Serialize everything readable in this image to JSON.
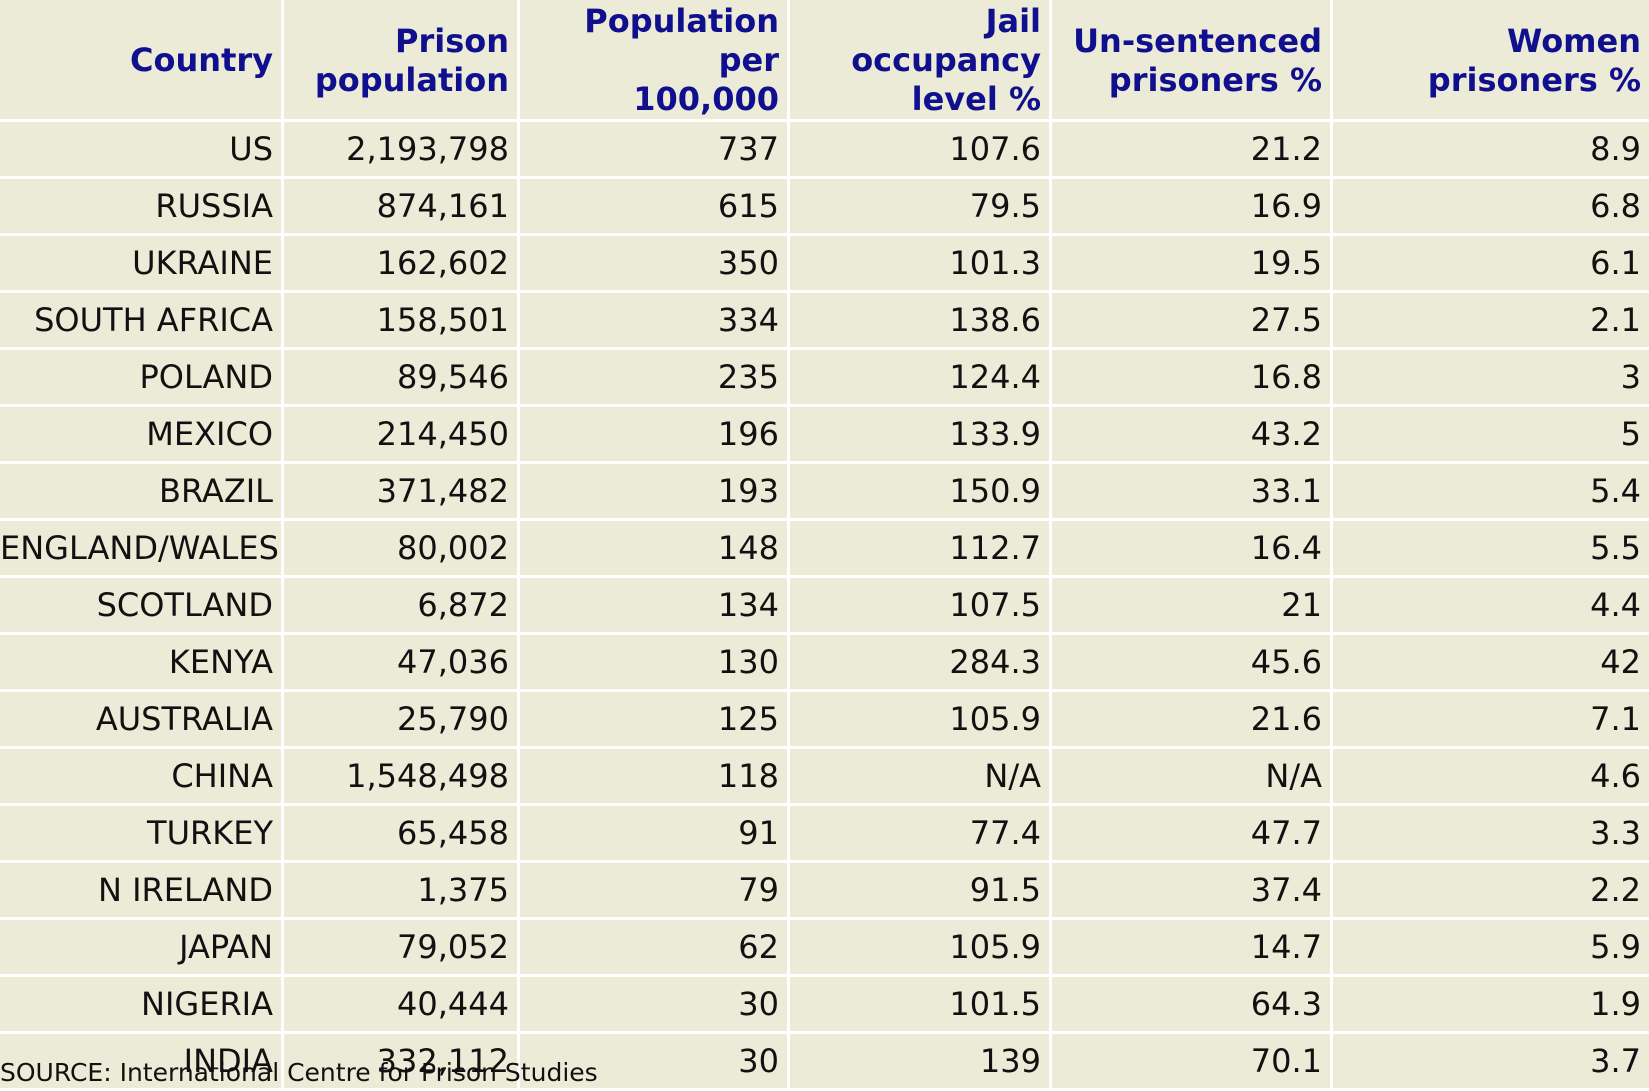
{
  "table": {
    "headers": [
      [
        "Country"
      ],
      [
        "Prison",
        "population"
      ],
      [
        "Population per",
        "100,000"
      ],
      [
        "Jail occupancy",
        "level %"
      ],
      [
        "Un-sentenced",
        "prisoners %"
      ],
      [
        "Women",
        "prisoners %"
      ]
    ],
    "rows": [
      [
        "US",
        "2,193,798",
        "737",
        "107.6",
        "21.2",
        "8.9"
      ],
      [
        "RUSSIA",
        "874,161",
        "615",
        "79.5",
        "16.9",
        "6.8"
      ],
      [
        "UKRAINE",
        "162,602",
        "350",
        "101.3",
        "19.5",
        "6.1"
      ],
      [
        "SOUTH AFRICA",
        "158,501",
        "334",
        "138.6",
        "27.5",
        "2.1"
      ],
      [
        "POLAND",
        "89,546",
        "235",
        "124.4",
        "16.8",
        "3"
      ],
      [
        "MEXICO",
        "214,450",
        "196",
        "133.9",
        "43.2",
        "5"
      ],
      [
        "BRAZIL",
        "371,482",
        "193",
        "150.9",
        "33.1",
        "5.4"
      ],
      [
        "ENGLAND/WALES",
        "80,002",
        "148",
        "112.7",
        "16.4",
        "5.5"
      ],
      [
        "SCOTLAND",
        "6,872",
        "134",
        "107.5",
        "21",
        "4.4"
      ],
      [
        "KENYA",
        "47,036",
        "130",
        "284.3",
        "45.6",
        "42"
      ],
      [
        "AUSTRALIA",
        "25,790",
        "125",
        "105.9",
        "21.6",
        "7.1"
      ],
      [
        "CHINA",
        "1,548,498",
        "118",
        "N/A",
        "N/A",
        "4.6"
      ],
      [
        "TURKEY",
        "65,458",
        "91",
        "77.4",
        "47.7",
        "3.3"
      ],
      [
        "N IRELAND",
        "1,375",
        "79",
        "91.5",
        "37.4",
        "2.2"
      ],
      [
        "JAPAN",
        "79,052",
        "62",
        "105.9",
        "14.7",
        "5.9"
      ],
      [
        "NIGERIA",
        "40,444",
        "30",
        "101.5",
        "64.3",
        "1.9"
      ],
      [
        "INDIA",
        "332,112",
        "30",
        "139",
        "70.1",
        "3.7"
      ]
    ]
  },
  "source": "SOURCE: International Centre for Prison Studies",
  "colors": {
    "header_text": "#10108f",
    "cell_background": "#ecebd8",
    "grid_lines": "#ffffff",
    "body_text": "#111111"
  }
}
